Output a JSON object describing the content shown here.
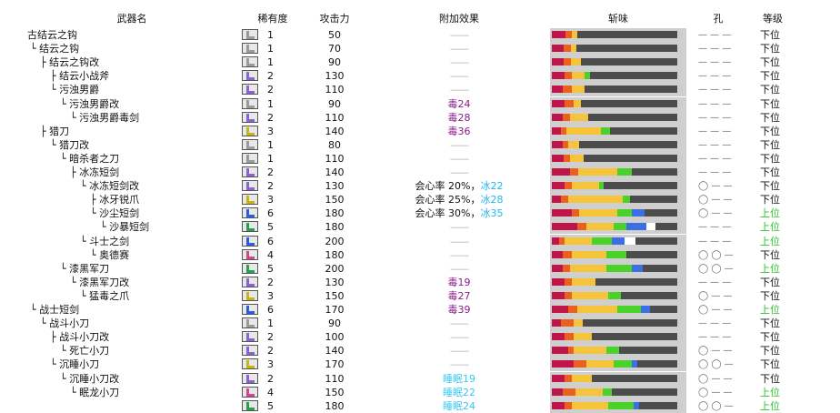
{
  "headers": {
    "name": "武器名",
    "rarity": "稀有度",
    "attack": "攻击力",
    "effect": "附加效果",
    "sharpness": "斩味",
    "slots": "孔",
    "rank": "等级"
  },
  "colors": {
    "red": "#c0154b",
    "orange": "#e9601f",
    "yellow": "#f6c43b",
    "green": "#4bd22a",
    "blue": "#3b6fe3",
    "white": "#ffffff",
    "empty": "#4c4c4c",
    "low_rank": "#111111",
    "high_rank": "#2cc22c",
    "poison": "#8b1a8b",
    "ice": "#22b5f0",
    "sleep": "#3ac8f0"
  },
  "rows": [
    {
      "name": "古结云之钩",
      "depth": 0,
      "branch": "",
      "rarity": "1",
      "icon_color": "#9a9a9a",
      "attack": "50",
      "effect": "——",
      "etype": "none",
      "sharp": [
        15,
        7,
        6,
        0,
        0,
        0
      ],
      "slots": "— — —",
      "rank": "下位",
      "rtype": "low"
    },
    {
      "name": "结云之钩",
      "depth": 1,
      "branch": "└",
      "rarity": "1",
      "icon_color": "#9a9a9a",
      "attack": "70",
      "effect": "——",
      "etype": "none",
      "sharp": [
        13,
        8,
        6,
        0,
        0,
        0
      ],
      "slots": "— — —",
      "rank": "下位",
      "rtype": "low"
    },
    {
      "name": "结云之钩改",
      "depth": 2,
      "branch": "├",
      "rarity": "1",
      "icon_color": "#9a9a9a",
      "attack": "90",
      "effect": "——",
      "etype": "none",
      "sharp": [
        13,
        8,
        11,
        0,
        0,
        0
      ],
      "slots": "— — —",
      "rank": "下位",
      "rtype": "low"
    },
    {
      "name": "结云小战斧",
      "depth": 3,
      "branch": "├",
      "rarity": "2",
      "icon_color": "#8a63d2",
      "attack": "130",
      "effect": "——",
      "etype": "none",
      "sharp": [
        14,
        8,
        14,
        6,
        0,
        0
      ],
      "slots": "— — —",
      "rank": "下位",
      "rtype": "low"
    },
    {
      "name": "污浊男爵",
      "depth": 3,
      "branch": "└",
      "rarity": "2",
      "icon_color": "#8a63d2",
      "attack": "110",
      "effect": "——",
      "etype": "none",
      "sharp": [
        12,
        10,
        14,
        0,
        0,
        0
      ],
      "slots": "— — —",
      "rank": "下位",
      "rtype": "low"
    },
    {
      "name": "污浊男爵改",
      "depth": 4,
      "branch": "└",
      "rarity": "1",
      "icon_color": "#9a9a9a",
      "attack": "90",
      "effect": "毒24",
      "etype": "poison",
      "sharp": [
        14,
        10,
        8,
        0,
        0,
        0
      ],
      "slots": "— — —",
      "rank": "下位",
      "rtype": "low"
    },
    {
      "name": "污浊男爵毒剑",
      "depth": 5,
      "branch": "└",
      "rarity": "2",
      "icon_color": "#8a63d2",
      "attack": "110",
      "effect": "毒28",
      "etype": "poison",
      "sharp": [
        12,
        8,
        20,
        0,
        0,
        0
      ],
      "slots": "— — —",
      "rank": "下位",
      "rtype": "low"
    },
    {
      "name": "猎刀",
      "depth": 2,
      "branch": "├",
      "rarity": "3",
      "icon_color": "#c8b21a",
      "attack": "140",
      "effect": "毒36",
      "etype": "poison",
      "sharp": [
        10,
        6,
        38,
        10,
        0,
        0
      ],
      "slots": "— — —",
      "rank": "下位",
      "rtype": "low"
    },
    {
      "name": "猎刀改",
      "depth": 3,
      "branch": "└",
      "rarity": "1",
      "icon_color": "#9a9a9a",
      "attack": "80",
      "effect": "——",
      "etype": "none",
      "sharp": [
        12,
        6,
        12,
        0,
        0,
        0
      ],
      "slots": "— — —",
      "rank": "下位",
      "rtype": "low"
    },
    {
      "name": "暗杀者之刀",
      "depth": 4,
      "branch": "└",
      "rarity": "1",
      "icon_color": "#9a9a9a",
      "attack": "110",
      "effect": "——",
      "etype": "none",
      "sharp": [
        13,
        7,
        15,
        0,
        0,
        0
      ],
      "slots": "— — —",
      "rank": "下位",
      "rtype": "low"
    },
    {
      "name": "冰冻短剑",
      "depth": 5,
      "branch": "├",
      "rarity": "2",
      "icon_color": "#8a63d2",
      "attack": "140",
      "effect": "——",
      "etype": "none",
      "sharp": [
        20,
        9,
        43,
        16,
        0,
        0
      ],
      "slots": "— — —",
      "rank": "下位",
      "rtype": "low"
    },
    {
      "name": "冰冻短剑改",
      "depth": 6,
      "branch": "└",
      "rarity": "2",
      "icon_color": "#8a63d2",
      "attack": "130",
      "effect": "会心率 20%，冰22",
      "etype": "ice",
      "sharp": [
        14,
        8,
        30,
        5,
        0,
        0
      ],
      "slots": "◯ — —",
      "rank": "下位",
      "rtype": "low"
    },
    {
      "name": "冰牙锐爪",
      "depth": 7,
      "branch": "├",
      "rarity": "3",
      "icon_color": "#c8b21a",
      "attack": "150",
      "effect": "会心率 25%，冰28",
      "etype": "ice",
      "sharp": [
        10,
        8,
        60,
        8,
        0,
        0
      ],
      "slots": "◯ — —",
      "rank": "下位",
      "rtype": "low"
    },
    {
      "name": "沙尘短剑",
      "depth": 7,
      "branch": "└",
      "rarity": "6",
      "icon_color": "#2a5de0",
      "attack": "180",
      "effect": "会心率 30%，冰35",
      "etype": "ice",
      "sharp": [
        22,
        8,
        42,
        16,
        14,
        0
      ],
      "slots": "◯ — —",
      "rank": "上位",
      "rtype": "high"
    },
    {
      "name": "沙暴短剑",
      "depth": 8,
      "branch": "└",
      "rarity": "5",
      "icon_color": "#2aa04a",
      "attack": "180",
      "effect": "——",
      "etype": "none",
      "sharp": [
        28,
        10,
        30,
        14,
        22,
        10
      ],
      "slots": "— — —",
      "rank": "上位",
      "rtype": "high"
    },
    {
      "name": "斗士之剑",
      "depth": 6,
      "branch": "└",
      "rarity": "6",
      "icon_color": "#2a5de0",
      "attack": "200",
      "effect": "——",
      "etype": "none",
      "sharp": [
        8,
        6,
        30,
        22,
        14,
        12
      ],
      "slots": "— — —",
      "rank": "上位",
      "rtype": "high"
    },
    {
      "name": "奥德赛",
      "depth": 7,
      "branch": "└",
      "rarity": "4",
      "icon_color": "#d04790",
      "attack": "180",
      "effect": "——",
      "etype": "none",
      "sharp": [
        12,
        10,
        38,
        22,
        0,
        0
      ],
      "slots": "◯ ◯ —",
      "rank": "下位",
      "rtype": "low"
    },
    {
      "name": "漆黑军刀",
      "depth": 4,
      "branch": "└",
      "rarity": "5",
      "icon_color": "#2aa04a",
      "attack": "200",
      "effect": "——",
      "etype": "none",
      "sharp": [
        12,
        8,
        40,
        28,
        12,
        0
      ],
      "slots": "◯ ◯ —",
      "rank": "上位",
      "rtype": "high"
    },
    {
      "name": "漆黑军刀改",
      "depth": 5,
      "branch": "└",
      "rarity": "2",
      "icon_color": "#8a63d2",
      "attack": "130",
      "effect": "毒19",
      "etype": "poison",
      "sharp": [
        14,
        8,
        26,
        0,
        0,
        0
      ],
      "slots": "— — —",
      "rank": "下位",
      "rtype": "low"
    },
    {
      "name": "猛毒之爪",
      "depth": 6,
      "branch": "└",
      "rarity": "3",
      "icon_color": "#c8b21a",
      "attack": "150",
      "effect": "毒27",
      "etype": "poison",
      "sharp": [
        14,
        8,
        40,
        14,
        0,
        0
      ],
      "slots": "◯ — —",
      "rank": "下位",
      "rtype": "low"
    },
    {
      "name": "战士短剑",
      "depth": 1,
      "branch": "└",
      "rarity": "6",
      "icon_color": "#2a5de0",
      "attack": "170",
      "effect": "毒39",
      "etype": "poison",
      "sharp": [
        18,
        10,
        44,
        26,
        10,
        0
      ],
      "slots": "◯ — —",
      "rank": "上位",
      "rtype": "high"
    },
    {
      "name": "战斗小刀",
      "depth": 2,
      "branch": "└",
      "rarity": "1",
      "icon_color": "#9a9a9a",
      "attack": "90",
      "effect": "——",
      "etype": "none",
      "sharp": [
        10,
        14,
        10,
        0,
        0,
        0
      ],
      "slots": "— — —",
      "rank": "下位",
      "rtype": "low"
    },
    {
      "name": "战斗小刀改",
      "depth": 3,
      "branch": "├",
      "rarity": "2",
      "icon_color": "#8a63d2",
      "attack": "100",
      "effect": "——",
      "etype": "none",
      "sharp": [
        14,
        10,
        20,
        0,
        0,
        0
      ],
      "slots": "— — —",
      "rank": "下位",
      "rtype": "low"
    },
    {
      "name": "死亡小刀",
      "depth": 4,
      "branch": "└",
      "rarity": "2",
      "icon_color": "#8a63d2",
      "attack": "140",
      "effect": "——",
      "etype": "none",
      "sharp": [
        18,
        6,
        36,
        14,
        0,
        0
      ],
      "slots": "◯ — —",
      "rank": "下位",
      "rtype": "low"
    },
    {
      "name": "沉睡小刀",
      "depth": 3,
      "branch": "└",
      "rarity": "3",
      "icon_color": "#c8b21a",
      "attack": "170",
      "effect": "——",
      "etype": "none",
      "sharp": [
        24,
        14,
        30,
        20,
        6,
        0
      ],
      "slots": "◯ ◯ —",
      "rank": "下位",
      "rtype": "low"
    },
    {
      "name": "沉睡小刀改",
      "depth": 4,
      "branch": "└",
      "rarity": "2",
      "icon_color": "#8a63d2",
      "attack": "110",
      "effect": "睡眠19",
      "etype": "sleep",
      "sharp": [
        14,
        8,
        22,
        0,
        0,
        0
      ],
      "slots": "◯ — —",
      "rank": "下位",
      "rtype": "low"
    },
    {
      "name": "眠龙小刀",
      "depth": 5,
      "branch": "└",
      "rarity": "4",
      "icon_color": "#d04790",
      "attack": "150",
      "effect": "睡眠22",
      "etype": "sleep",
      "sharp": [
        12,
        14,
        30,
        10,
        0,
        0
      ],
      "slots": "◯ — —",
      "rank": "上位",
      "rtype": "high"
    },
    {
      "name": "",
      "depth": 0,
      "branch": "",
      "rarity": "5",
      "icon_color": "#2aa04a",
      "attack": "180",
      "effect": "睡眠24",
      "etype": "sleep",
      "sharp": [
        14,
        8,
        40,
        28,
        6,
        0
      ],
      "slots": "◯ ◯ —",
      "rank": "上位",
      "rtype": "high"
    }
  ]
}
